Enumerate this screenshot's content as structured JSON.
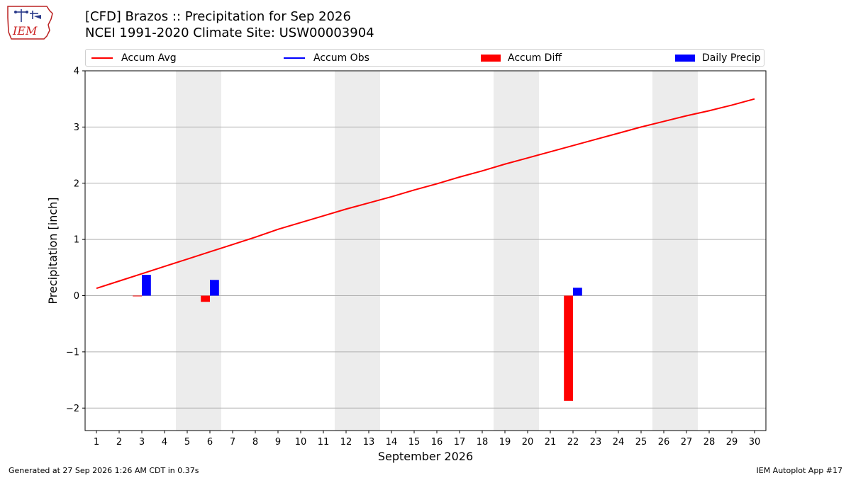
{
  "logo": {
    "text": "IEM"
  },
  "title": {
    "line1": "[CFD] Brazos :: Precipitation for Sep 2026",
    "line2": "NCEI 1991-2020 Climate Site: USW00003904"
  },
  "legend": {
    "items": [
      {
        "label": "Accum Avg",
        "kind": "line",
        "color": "#ff0000"
      },
      {
        "label": "Accum Obs",
        "kind": "line",
        "color": "#0000ff"
      },
      {
        "label": "Accum Diff",
        "kind": "patch",
        "color": "#ff0000"
      },
      {
        "label": "Daily Precip",
        "kind": "patch",
        "color": "#0000ff"
      }
    ]
  },
  "footer": {
    "left": "Generated at 27 Sep 2026 1:26 AM CDT in 0.37s",
    "right": "IEM Autoplot App #17"
  },
  "chart_data": {
    "type": "bar",
    "xlabel": "September 2026",
    "ylabel": "Precipitation [inch]",
    "xlim": [
      0.5,
      30.5
    ],
    "ylim": [
      -2.4,
      4.0
    ],
    "yticks": [
      -2,
      -1,
      0,
      1,
      2,
      3,
      4
    ],
    "xticks": [
      1,
      2,
      3,
      4,
      5,
      6,
      7,
      8,
      9,
      10,
      11,
      12,
      13,
      14,
      15,
      16,
      17,
      18,
      19,
      20,
      21,
      22,
      23,
      24,
      25,
      26,
      27,
      28,
      29,
      30
    ],
    "weekend_shading": [
      [
        4.5,
        6.5
      ],
      [
        11.5,
        13.5
      ],
      [
        18.5,
        20.5
      ],
      [
        25.5,
        27.5
      ]
    ],
    "grid": "horizontal",
    "legend_position": "top",
    "series": [
      {
        "name": "Accum Avg",
        "type": "line",
        "color": "#ff0000",
        "x": [
          1,
          2,
          3,
          4,
          5,
          6,
          7,
          8,
          9,
          10,
          11,
          12,
          13,
          14,
          15,
          16,
          17,
          18,
          19,
          20,
          21,
          22,
          23,
          24,
          25,
          26,
          27,
          28,
          29,
          30
        ],
        "values": [
          0.13,
          0.26,
          0.39,
          0.52,
          0.65,
          0.78,
          0.91,
          1.04,
          1.18,
          1.3,
          1.42,
          1.54,
          1.65,
          1.76,
          1.88,
          1.99,
          2.11,
          2.22,
          2.34,
          2.45,
          2.56,
          2.67,
          2.78,
          2.89,
          3.0,
          3.1,
          3.2,
          3.29,
          3.39,
          3.5
        ]
      },
      {
        "name": "Accum Diff",
        "type": "bar",
        "color": "#ff0000",
        "x": [
          3,
          6,
          22
        ],
        "values": [
          -0.01,
          -0.11,
          -1.87
        ]
      },
      {
        "name": "Daily Precip",
        "type": "bar",
        "color": "#0000ff",
        "x": [
          3,
          6,
          22
        ],
        "values": [
          0.37,
          0.28,
          0.14
        ]
      }
    ]
  }
}
